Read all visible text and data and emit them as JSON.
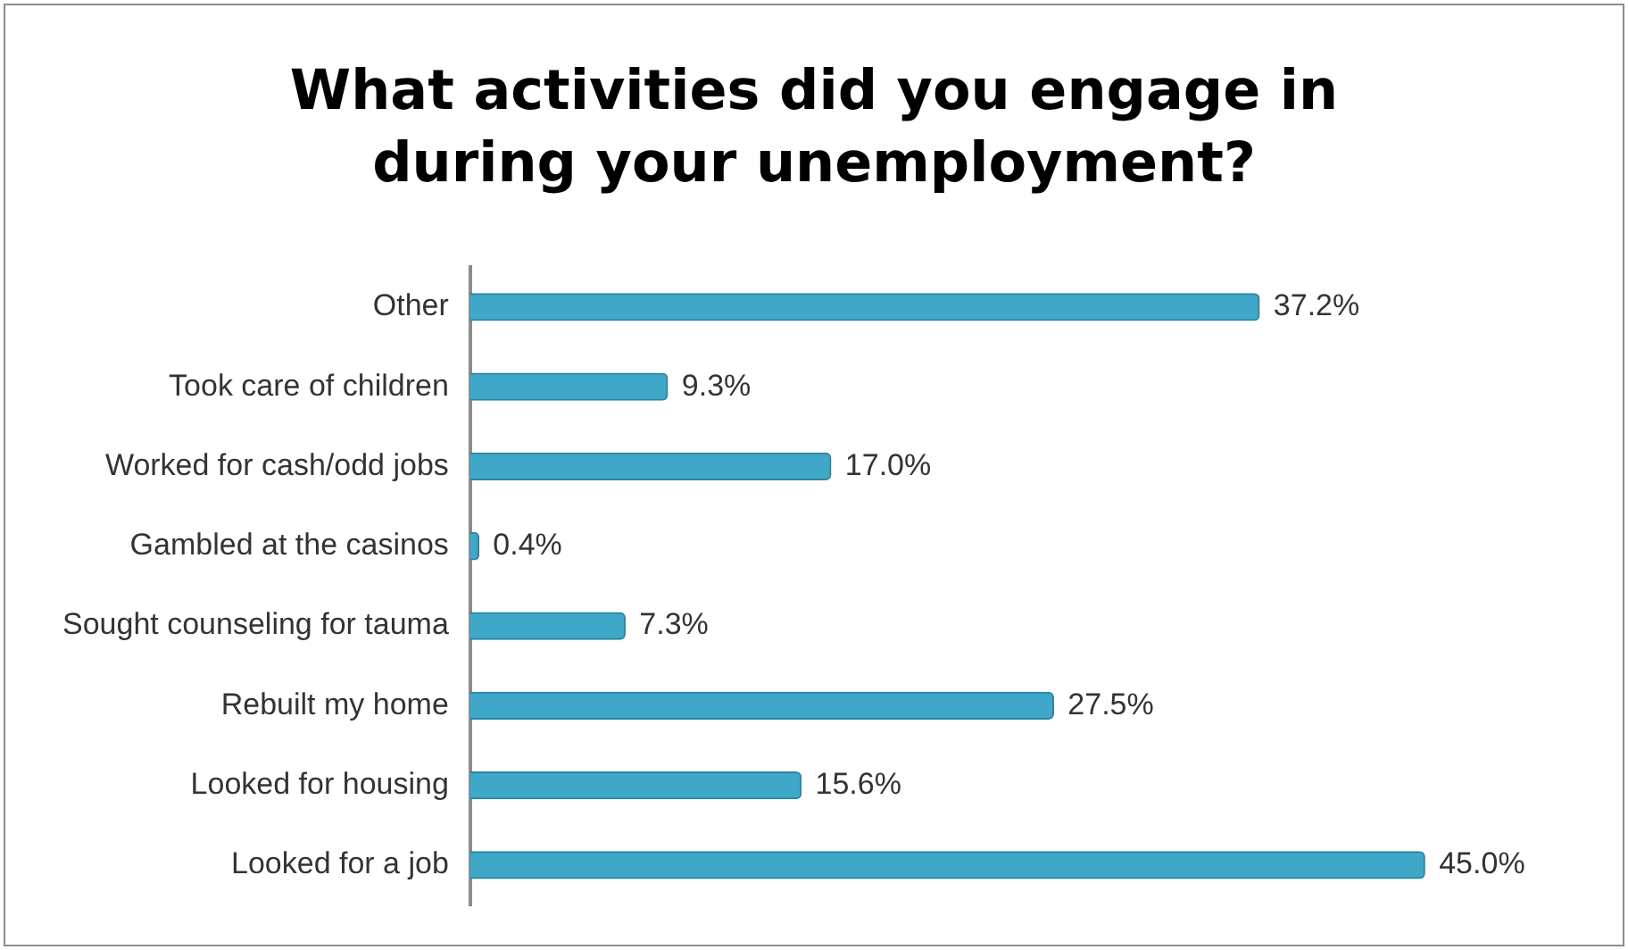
{
  "chart_data": {
    "type": "bar",
    "orientation": "horizontal",
    "title": "What activities did you engage in\nduring your unemployment?",
    "categories": [
      "Other",
      "Took care of children",
      "Worked for cash/odd jobs",
      "Gambled at the casinos",
      "Sought counseling for tauma",
      "Rebuilt my home",
      "Looked for housing",
      "Looked for a job"
    ],
    "values": [
      37.2,
      9.3,
      17.0,
      0.4,
      7.3,
      27.5,
      15.6,
      45.0
    ],
    "value_labels": [
      "37.2%",
      "9.3%",
      "17.0%",
      "0.4%",
      "7.3%",
      "27.5%",
      "15.6%",
      "45.0%"
    ],
    "color": "#3fa8c8"
  }
}
